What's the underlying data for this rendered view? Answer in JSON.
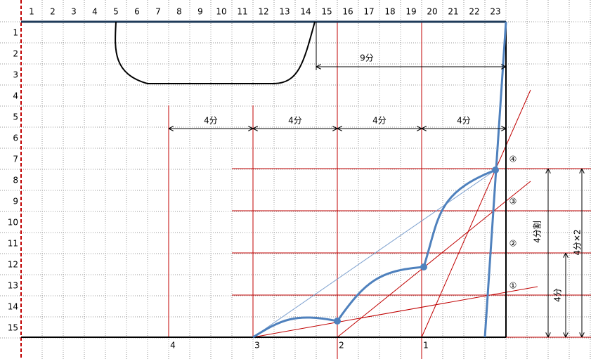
{
  "columns": [
    "1",
    "2",
    "3",
    "4",
    "5",
    "6",
    "7",
    "8",
    "9",
    "10",
    "11",
    "12",
    "13",
    "14",
    "15",
    "16",
    "17",
    "18",
    "19",
    "20",
    "21",
    "22",
    "23"
  ],
  "rows": [
    "1",
    "2",
    "3",
    "4",
    "5",
    "6",
    "7",
    "8",
    "9",
    "10",
    "11",
    "12",
    "13",
    "14",
    "15"
  ],
  "dimensions": {
    "total": "9分",
    "segments": [
      "4分",
      "4分",
      "4分",
      "4分"
    ],
    "divide": "4分割",
    "double": "4分✕2",
    "single": "4分"
  },
  "base_points": [
    "4",
    "3",
    "2",
    "1"
  ],
  "markers": [
    "①",
    "②",
    "③",
    "④"
  ]
}
